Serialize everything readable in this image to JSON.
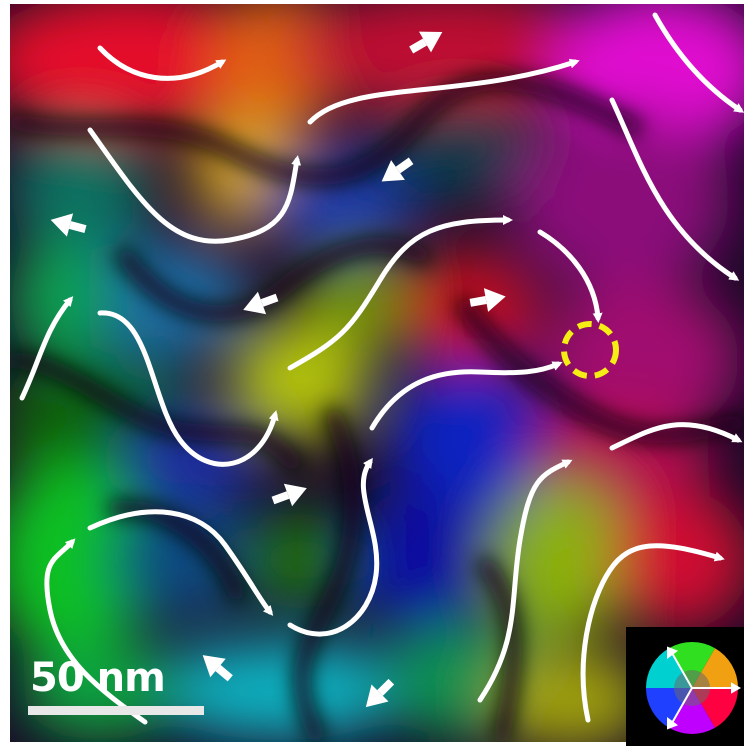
{
  "image": {
    "scale_bar": {
      "label": "50 nm"
    },
    "colors": {
      "flow_lines": "#ffffff",
      "highlight_circle": "#f5ee14",
      "background": "#000000",
      "frame": "#ffffff",
      "palette": [
        "#ff0000",
        "#ff8000",
        "#ffff00",
        "#00ff00",
        "#00ffff",
        "#0000ff",
        "#ff00ff"
      ]
    },
    "icons": {
      "streamlines": "curved-arrow-icon",
      "magnetization_arrows": "arrow-icon",
      "color_wheel": "color-wheel-icon",
      "highlight": "dashed-circle-icon"
    }
  }
}
